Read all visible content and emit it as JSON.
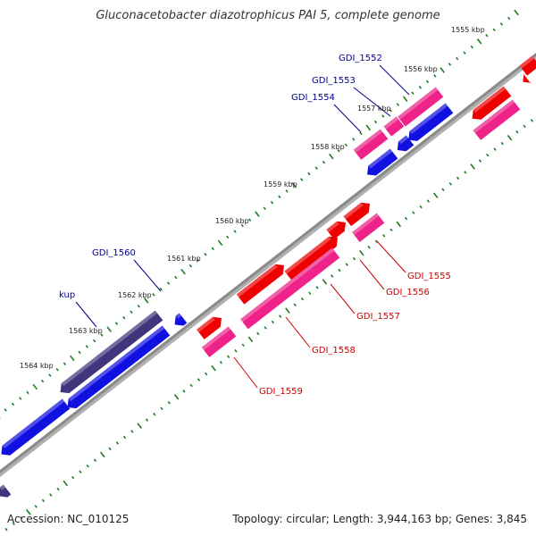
{
  "title": "Gluconacetobacter diazotrophicus PAI 5, complete genome",
  "footer": {
    "accession": "Accession: NC_010125",
    "summary": "Topology: circular; Length: 3,944,163 bp; Genes: 3,845"
  },
  "colors": {
    "backbone": "#8a8a8a",
    "tick": "#1f7a1f",
    "forward_label": "#00008b",
    "reverse_label": "#cc0000",
    "blue": "#1010e0",
    "indigo": "#40357a",
    "red": "#ee0000",
    "pink": "#ee2288"
  },
  "tick_labels": [
    "1555 kbp",
    "1556 kbp",
    "1557 kbp",
    "1558 kbp",
    "1559 kbp",
    "1560 kbp",
    "1561 kbp",
    "1562 kbp",
    "1563 kbp",
    "1564 kbp"
  ],
  "forward_genes": [
    {
      "name": "GDI_1552"
    },
    {
      "name": "GDI_1553"
    },
    {
      "name": "GDI_1554"
    },
    {
      "name": "GDI_1560"
    },
    {
      "name": "kup"
    }
  ],
  "reverse_genes": [
    {
      "name": "GDI_1555"
    },
    {
      "name": "GDI_1556"
    },
    {
      "name": "GDI_1557"
    },
    {
      "name": "GDI_1558"
    },
    {
      "name": "GDI_1559"
    }
  ]
}
